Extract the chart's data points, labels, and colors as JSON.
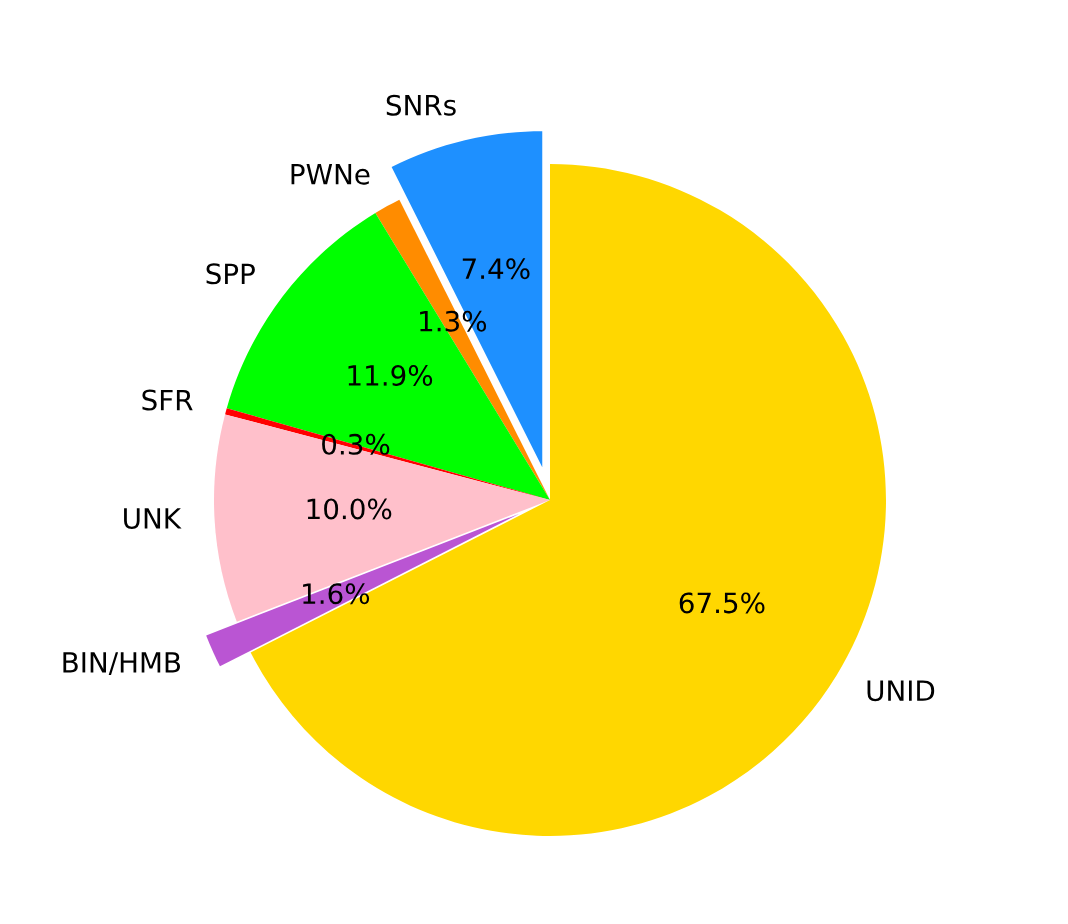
{
  "chart_data": {
    "type": "pie",
    "categories": [
      "SNRs",
      "PWNe",
      "SPP",
      "SFR",
      "UNK",
      "BIN/HMB",
      "UNID"
    ],
    "values": [
      7.4,
      1.3,
      11.9,
      0.3,
      10.0,
      1.6,
      67.5
    ],
    "colors": [
      "#1e90ff",
      "#ff8c00",
      "#00ff00",
      "#ff0000",
      "#ffc0cb",
      "#ba55d3",
      "#ffd700"
    ],
    "value_labels": [
      "7.4%",
      "1.3%",
      "11.9%",
      "0.3%",
      "10.0%",
      "1.6%",
      "67.5%"
    ]
  }
}
